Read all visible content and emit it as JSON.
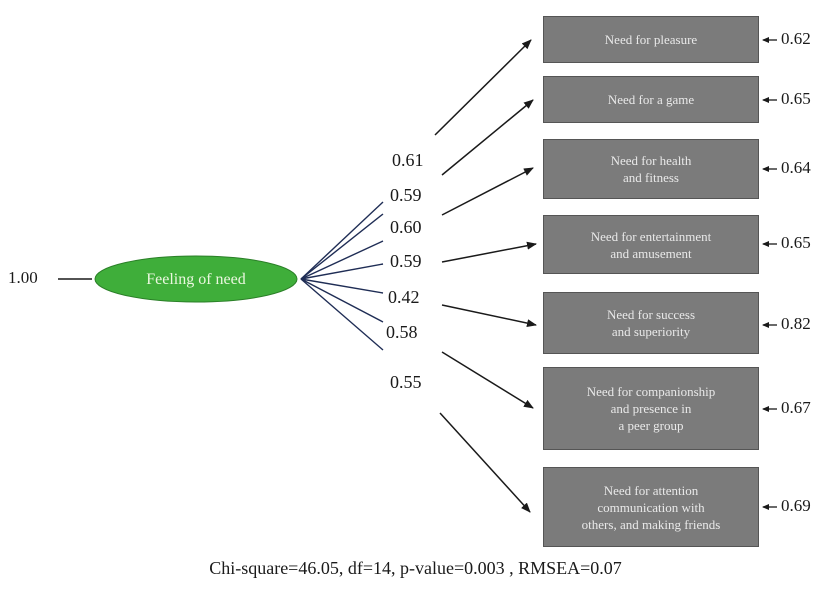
{
  "latent": {
    "label": "Feeling of need",
    "variance": "1.00",
    "color": "#3fae3a"
  },
  "indicators": [
    {
      "label": "Need for pleasure",
      "loading": "0.61",
      "error": "0.62"
    },
    {
      "label": "Need for a game",
      "loading": "0.59",
      "error": "0.65"
    },
    {
      "label": "Need for health\nand fitness",
      "loading": "0.60",
      "error": "0.64"
    },
    {
      "label": "Need for entertainment\nand amusement",
      "loading": "0.59",
      "error": "0.65"
    },
    {
      "label": "Need for success\nand superiority",
      "loading": "0.42",
      "error": "0.82"
    },
    {
      "label": "Need for companionship\nand presence in\na peer group",
      "loading": "0.58",
      "error": "0.67"
    },
    {
      "label": "Need for attention\ncommunication with\nothers, and making friends",
      "loading": "0.55",
      "error": "0.69"
    }
  ],
  "fit_statistics": "Chi-square=46.05, df=14, p-value=0.003 , RMSEA=0.07"
}
